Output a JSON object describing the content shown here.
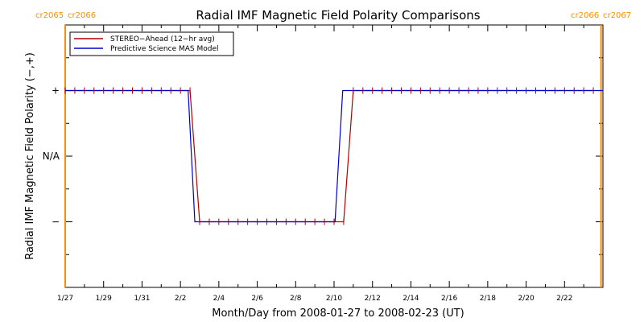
{
  "chart_data": {
    "type": "line",
    "title": "Radial IMF Magnetic Field Polarity Comparisons",
    "xlabel": "Month/Day from 2008-01-27 to 2008-02-23 (UT)",
    "ylabel": "Radial IMF Magnetic Field Polarity (−,+)",
    "x_unit": "days from 2008-01-27",
    "xlim": [
      0,
      28
    ],
    "ylim": [
      -2,
      2
    ],
    "y_tick_values": [
      -1,
      0,
      1
    ],
    "y_tick_labels": [
      "−",
      "N/A",
      "+"
    ],
    "x_ticks": [
      {
        "x": 0,
        "label": "1/27"
      },
      {
        "x": 2,
        "label": "1/29"
      },
      {
        "x": 4,
        "label": "1/31"
      },
      {
        "x": 6,
        "label": "2/2"
      },
      {
        "x": 8,
        "label": "2/4"
      },
      {
        "x": 10,
        "label": "2/6"
      },
      {
        "x": 12,
        "label": "2/8"
      },
      {
        "x": 14,
        "label": "2/10"
      },
      {
        "x": 16,
        "label": "2/12"
      },
      {
        "x": 18,
        "label": "2/14"
      },
      {
        "x": 20,
        "label": "2/16"
      },
      {
        "x": 22,
        "label": "2/18"
      },
      {
        "x": 24,
        "label": "2/20"
      },
      {
        "x": 26,
        "label": "2/22"
      }
    ],
    "series": [
      {
        "name": "STEREO−Ahead (12−hr avg)",
        "color": "#b00000",
        "x": [
          0,
          0.5,
          1,
          1.5,
          2,
          2.5,
          3,
          3.5,
          4,
          4.5,
          5,
          5.5,
          6,
          6.5,
          7,
          7.5,
          8,
          8.5,
          9,
          9.5,
          10,
          10.5,
          11,
          11.5,
          12,
          12.5,
          13,
          13.5,
          14,
          14.5,
          15,
          15.5,
          16,
          16.5,
          17,
          17.5,
          18,
          18.5,
          19,
          19.5,
          20,
          20.5,
          21,
          21.5,
          22,
          22.5,
          23,
          23.5,
          24,
          24.5,
          25,
          25.5,
          26,
          26.5,
          27,
          27.5
        ],
        "values": [
          1,
          1,
          1,
          1,
          1,
          1,
          1,
          1,
          1,
          1,
          1,
          1,
          1,
          1,
          -1,
          -1,
          -1,
          -1,
          -1,
          -1,
          -1,
          -1,
          -1,
          -1,
          -1,
          -1,
          -1,
          -1,
          -1,
          -1,
          1,
          1,
          1,
          1,
          1,
          1,
          1,
          1,
          1,
          1,
          1,
          1,
          1,
          1,
          1,
          1,
          1,
          1,
          1,
          1,
          1,
          1,
          1,
          1,
          1,
          1
        ]
      },
      {
        "name": "Predictive Science MAS Model",
        "color": "#0000cc",
        "x": [
          0,
          6.4,
          6.75,
          14.05,
          14.45,
          28
        ],
        "values": [
          1,
          1,
          -1,
          -1,
          1,
          1
        ]
      }
    ],
    "vertical_markers": [
      {
        "x": 0,
        "color": "#ff8c00",
        "labels": [
          "cr2065",
          "cr2066"
        ]
      },
      {
        "x": 27.9,
        "color": "#ff8c00",
        "labels": [
          "cr2066",
          "cr2067"
        ]
      }
    ],
    "legend_position": "top-left",
    "grid": false
  }
}
